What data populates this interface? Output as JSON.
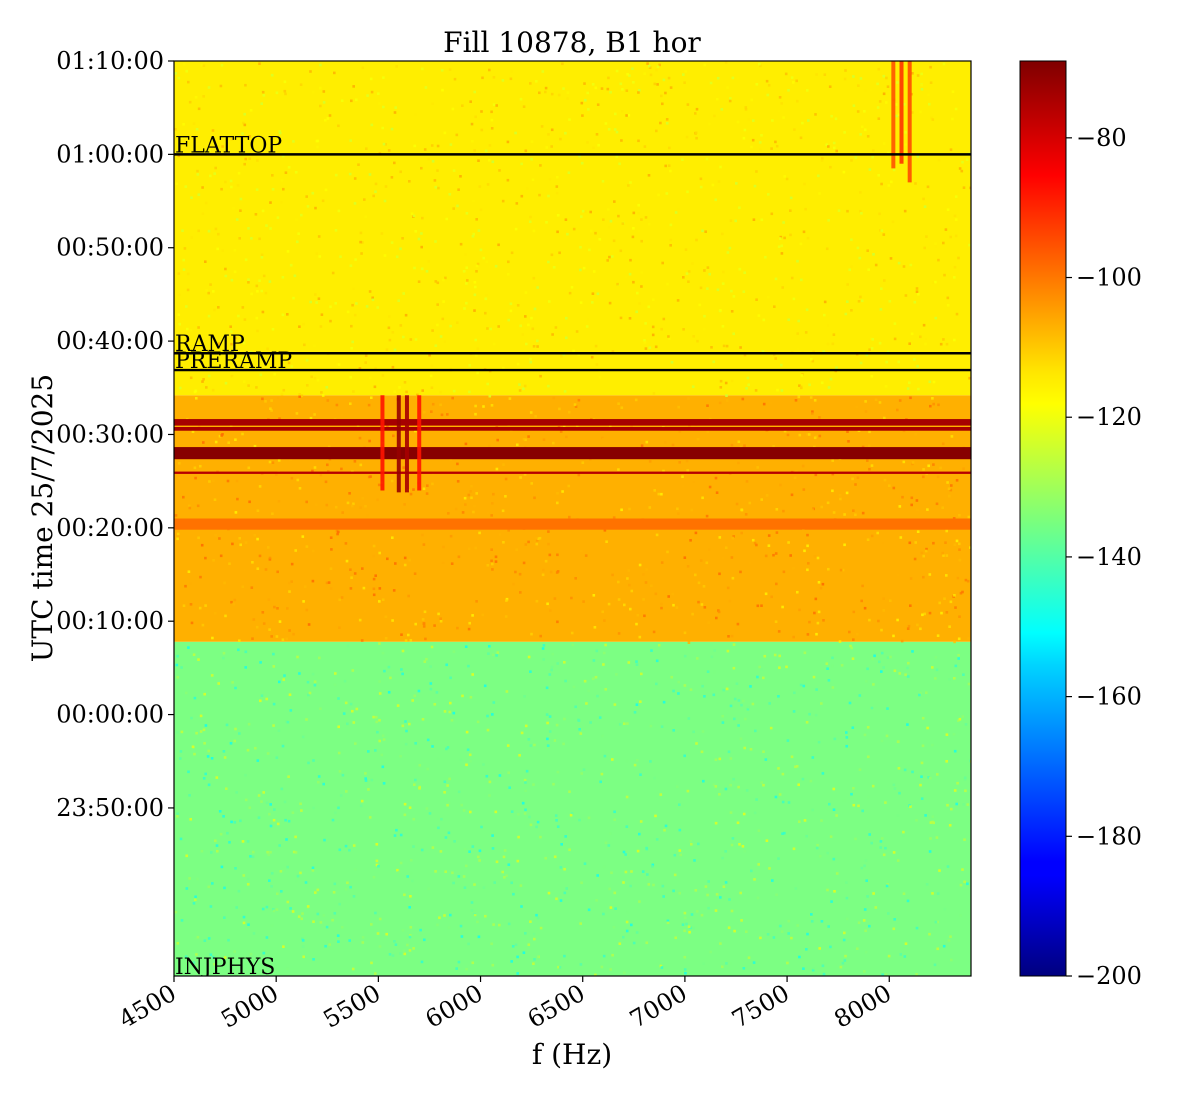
{
  "chart_data": {
    "type": "heatmap",
    "title": "Fill 10878, B1 hor",
    "xlabel": "f (Hz)",
    "ylabel": "UTC time 25/7/2025",
    "xlim": [
      4500,
      8400
    ],
    "x_ticks": [
      4500,
      5000,
      5500,
      6000,
      6500,
      7000,
      7500,
      8000
    ],
    "y_range_minutes": [
      -28,
      70
    ],
    "y_ticks": [
      {
        "label": "01:10:00",
        "minutes": 70
      },
      {
        "label": "01:00:00",
        "minutes": 60
      },
      {
        "label": "00:50:00",
        "minutes": 50
      },
      {
        "label": "00:40:00",
        "minutes": 40
      },
      {
        "label": "00:30:00",
        "minutes": 30
      },
      {
        "label": "00:20:00",
        "minutes": 20
      },
      {
        "label": "00:10:00",
        "minutes": 10
      },
      {
        "label": "00:00:00",
        "minutes": 0
      },
      {
        "label": "23:50:00",
        "minutes": -10
      }
    ],
    "colorbar": {
      "min": -200,
      "max": -69,
      "ticks": [
        -80,
        -100,
        -120,
        -140,
        -160,
        -180,
        -200
      ],
      "colormap": "jet"
    },
    "phase_markers": [
      {
        "label": "FLATTOP",
        "minutes": 60.0
      },
      {
        "label": "RAMP",
        "minutes": 38.7
      },
      {
        "label": "PRERAMP",
        "minutes": 36.9
      },
      {
        "label": "INJPHYS",
        "minutes": -28.0
      }
    ],
    "regions": [
      {
        "from_minutes": -28.0,
        "to_minutes": 7.8,
        "level_db": -135
      },
      {
        "from_minutes": 7.8,
        "to_minutes": 34.2,
        "level_db": -108
      },
      {
        "from_minutes": 34.2,
        "to_minutes": 70.0,
        "level_db": -116
      }
    ],
    "bands": [
      {
        "minutes": 31.3,
        "width_minutes": 0.7,
        "level_db": -74
      },
      {
        "minutes": 30.6,
        "width_minutes": 0.4,
        "level_db": -74
      },
      {
        "minutes": 28.0,
        "width_minutes": 1.3,
        "level_db": -70
      },
      {
        "minutes": 25.9,
        "width_minutes": 0.25,
        "level_db": -76
      },
      {
        "minutes": 20.4,
        "width_minutes": 1.2,
        "level_db": -100
      }
    ],
    "vertical_lines": [
      {
        "x": 5600,
        "from_minutes": 23.8,
        "to_minutes": 34.2,
        "level_db": -72
      },
      {
        "x": 5640,
        "from_minutes": 23.8,
        "to_minutes": 34.2,
        "level_db": -74
      },
      {
        "x": 5520,
        "from_minutes": 24.0,
        "to_minutes": 34.2,
        "level_db": -88
      },
      {
        "x": 5700,
        "from_minutes": 24.0,
        "to_minutes": 34.2,
        "level_db": -88
      },
      {
        "x": 8020,
        "from_minutes": 58.5,
        "to_minutes": 70.0,
        "level_db": -96
      },
      {
        "x": 8060,
        "from_minutes": 59.0,
        "to_minutes": 70.0,
        "level_db": -92
      },
      {
        "x": 8100,
        "from_minutes": 57.0,
        "to_minutes": 70.0,
        "level_db": -95
      }
    ]
  }
}
